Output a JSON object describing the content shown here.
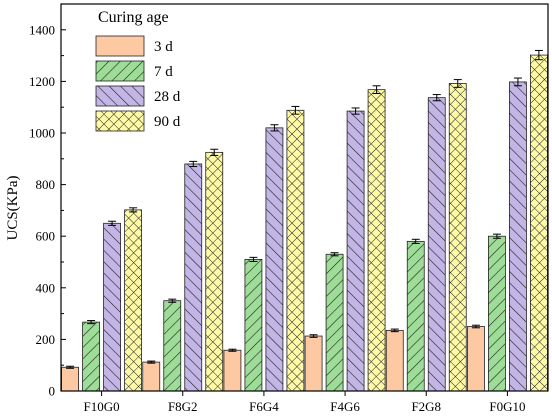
{
  "chart_data": {
    "type": "bar",
    "title": "",
    "xlabel": "",
    "ylabel": "UCS(KPa)",
    "ylim": [
      0,
      1500
    ],
    "yticks": [
      0,
      200,
      400,
      600,
      800,
      1000,
      1200,
      1400
    ],
    "categories": [
      "F10G0",
      "F8G2",
      "F6G4",
      "F4G6",
      "F2G8",
      "F0G10"
    ],
    "legend_title": "Curing age",
    "legend_position": "top-left",
    "grid": false,
    "series": [
      {
        "name": "3 d",
        "values": [
          92,
          112,
          158,
          213,
          235,
          250
        ],
        "errors": [
          4,
          4,
          4,
          5,
          5,
          5
        ],
        "color": "#fcc9a3",
        "pattern": "none"
      },
      {
        "name": "7 d",
        "values": [
          267,
          350,
          510,
          530,
          580,
          600
        ],
        "errors": [
          6,
          6,
          8,
          6,
          8,
          8
        ],
        "color": "#9edd98",
        "pattern": "diagonal-right"
      },
      {
        "name": "28 d",
        "values": [
          650,
          880,
          1020,
          1085,
          1137,
          1198
        ],
        "errors": [
          8,
          10,
          12,
          12,
          12,
          15
        ],
        "color": "#c3b6e6",
        "pattern": "diagonal-left"
      },
      {
        "name": "90 d",
        "values": [
          702,
          925,
          1088,
          1168,
          1192,
          1302
        ],
        "errors": [
          8,
          12,
          15,
          15,
          15,
          18
        ],
        "color": "#fffaa5",
        "pattern": "crosshatch"
      }
    ]
  }
}
